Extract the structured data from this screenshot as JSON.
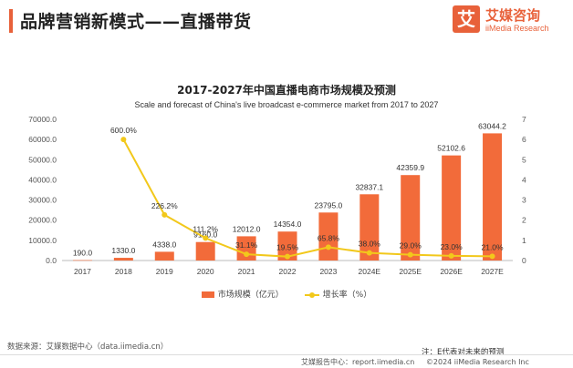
{
  "header": {
    "title": "品牌营销新模式——直播带货",
    "logo_mark": "艾",
    "logo_name": "艾媒咨询",
    "logo_sub": "iiMedia Research"
  },
  "chart_data": {
    "type": "bar",
    "title": "2017-2027年中国直播电商市场规模及预测",
    "subtitle": "Scale and forecast of China's live broadcast e-commerce market from 2017 to 2027",
    "categories": [
      "2017",
      "2018",
      "2019",
      "2020",
      "2021",
      "2022",
      "2023",
      "2024E",
      "2025E",
      "2026E",
      "2027E"
    ],
    "series": [
      {
        "name": "市场规模（亿元）",
        "type": "bar",
        "axis": "left",
        "values": [
          190.0,
          1330.0,
          4338.0,
          9160.0,
          12012.0,
          14354.0,
          23795.0,
          32837.1,
          42359.9,
          52102.6,
          63044.2
        ],
        "labels": [
          "190.0",
          "1330.0",
          "4338.0",
          "9160.0",
          "12012.0",
          "14354.0",
          "23795.0",
          "32837.1",
          "42359.9",
          "52102.6",
          "63044.2"
        ]
      },
      {
        "name": "增长率（%）",
        "type": "line",
        "axis": "right",
        "values": [
          null,
          6.0,
          2.262,
          1.112,
          0.311,
          0.195,
          0.658,
          0.38,
          0.29,
          0.23,
          0.21
        ],
        "labels": [
          "",
          "600.0%",
          "226.2%",
          "111.2%",
          "31.1%",
          "19.5%",
          "65.8%",
          "38.0%",
          "29.0%",
          "23.0%",
          "21.0%"
        ]
      }
    ],
    "y_left": {
      "range": [
        0,
        70000
      ],
      "ticks": [
        "0.0",
        "10000.0",
        "20000.0",
        "30000.0",
        "40000.0",
        "50000.0",
        "60000.0",
        "70000.0"
      ]
    },
    "y_right": {
      "range": [
        0,
        7
      ],
      "ticks": [
        "0",
        "1",
        "2",
        "3",
        "4",
        "5",
        "6",
        "7"
      ]
    },
    "grid": false,
    "legend_position": "bottom",
    "colors": {
      "bar": "#f26b3a",
      "line": "#f2c81b"
    }
  },
  "legend": {
    "bar_label": "市场规模（亿元）",
    "line_label": "增长率（%）"
  },
  "source_text": "数据来源：艾媒数据中心（data.iimedia.cn）",
  "note_text": "注：E代表对未来的预测",
  "footer": {
    "report_center": "艾媒报告中心：report.iimedia.cn",
    "copyright": "©2024 iiMedia Research Inc"
  }
}
